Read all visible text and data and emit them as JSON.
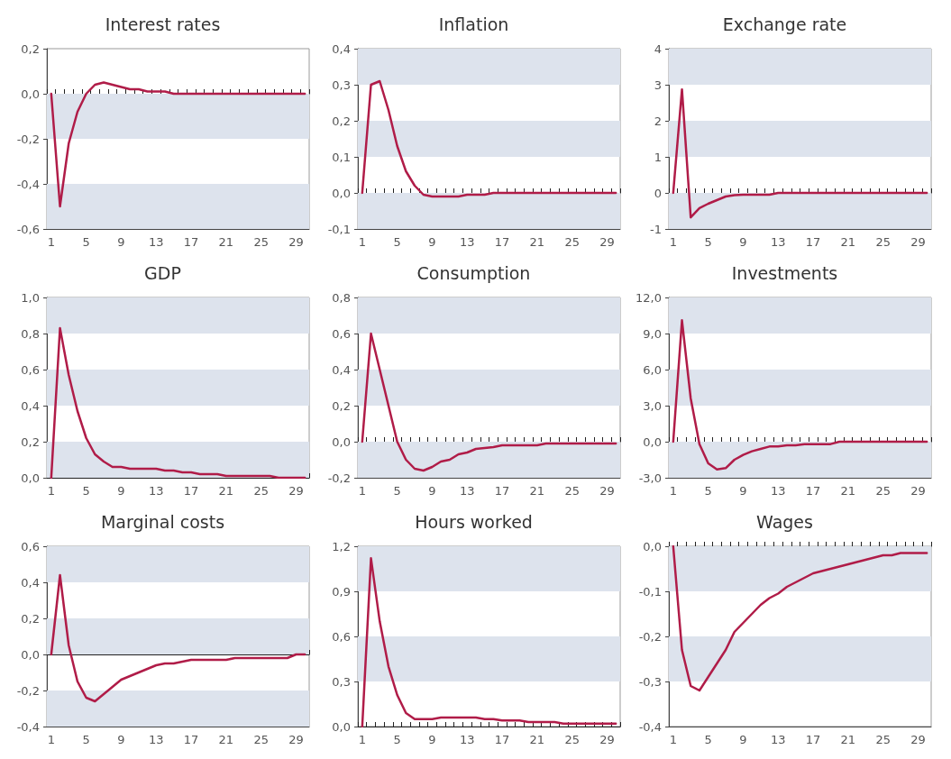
{
  "chart_data": [
    {
      "type": "line",
      "title": "Interest rates",
      "categories": [
        "1",
        null,
        null,
        null,
        "5",
        null,
        null,
        null,
        "9",
        null,
        null,
        null,
        "13",
        null,
        null,
        null,
        "17",
        null,
        null,
        null,
        "21",
        null,
        null,
        null,
        "25",
        null,
        null,
        null,
        "29",
        null
      ],
      "series": [
        {
          "color": "#b01c48",
          "values": [
            0,
            -0.5,
            -0.22,
            -0.08,
            0,
            0.04,
            0.05,
            0.04,
            0.03,
            0.02,
            0.02,
            0.01,
            0.01,
            0.01,
            0,
            0,
            0,
            0,
            0,
            0,
            0,
            0,
            0,
            0,
            0,
            0,
            0,
            0,
            0,
            0
          ]
        }
      ],
      "ylim": [
        -0.6,
        0.2
      ],
      "yticks": [
        {
          "value": -0.6,
          "label": "-0,6"
        },
        {
          "value": -0.4,
          "label": "-0,4"
        },
        {
          "value": -0.2,
          "label": "-0,2"
        },
        {
          "value": 0,
          "label": "0,0"
        },
        {
          "value": 0.2,
          "label": "0,2"
        }
      ],
      "bands": [
        {
          "axis": "y",
          "from": -0.6,
          "to": -0.4,
          "color": "#dde3ed"
        },
        {
          "axis": "y",
          "from": -0.2,
          "to": 0,
          "color": "#dde3ed"
        }
      ],
      "marker": "none",
      "line_style": "solid"
    },
    {
      "type": "line",
      "title": "Inflation",
      "categories": [
        "1",
        null,
        null,
        null,
        "5",
        null,
        null,
        null,
        "9",
        null,
        null,
        null,
        "13",
        null,
        null,
        null,
        "17",
        null,
        null,
        null,
        "21",
        null,
        null,
        null,
        "25",
        null,
        null,
        null,
        "29",
        null
      ],
      "series": [
        {
          "color": "#b01c48",
          "values": [
            0,
            0.3,
            0.31,
            0.23,
            0.13,
            0.06,
            0.02,
            -0.005,
            -0.01,
            -0.01,
            -0.01,
            -0.01,
            -0.005,
            -0.005,
            -0.005,
            0,
            0,
            0,
            0,
            0,
            0,
            0,
            0,
            0,
            0,
            0,
            0,
            0,
            0,
            0
          ]
        }
      ],
      "ylim": [
        -0.1,
        0.4
      ],
      "yticks": [
        {
          "value": -0.1,
          "label": "-0,1"
        },
        {
          "value": 0,
          "label": "0,0"
        },
        {
          "value": 0.1,
          "label": "0,1"
        },
        {
          "value": 0.2,
          "label": "0,2"
        },
        {
          "value": 0.3,
          "label": "0,3"
        },
        {
          "value": 0.4,
          "label": "0,4"
        }
      ],
      "bands": [
        {
          "axis": "y",
          "from": -0.1,
          "to": 0,
          "color": "#dde3ed"
        },
        {
          "axis": "y",
          "from": 0.1,
          "to": 0.2,
          "color": "#dde3ed"
        },
        {
          "axis": "y",
          "from": 0.3,
          "to": 0.4,
          "color": "#dde3ed"
        }
      ],
      "marker": "none",
      "line_style": "solid"
    },
    {
      "type": "line",
      "title": "Exchange rate",
      "categories": [
        "1",
        null,
        null,
        null,
        "5",
        null,
        null,
        null,
        "9",
        null,
        null,
        null,
        "13",
        null,
        null,
        null,
        "17",
        null,
        null,
        null,
        "21",
        null,
        null,
        null,
        "25",
        null,
        null,
        null,
        "29",
        null
      ],
      "series": [
        {
          "color": "#b01c48",
          "values": [
            0,
            2.87,
            -0.68,
            -0.42,
            -0.3,
            -0.2,
            -0.1,
            -0.06,
            -0.05,
            -0.05,
            -0.05,
            -0.05,
            0,
            0,
            0,
            0,
            0,
            0,
            0,
            0,
            0,
            0,
            0,
            0,
            0,
            0,
            0,
            0,
            0,
            0
          ]
        }
      ],
      "ylim": [
        -1,
        4
      ],
      "yticks": [
        -1,
        0,
        1,
        2,
        3,
        4
      ],
      "bands": [
        {
          "axis": "y",
          "from": -1,
          "to": 0,
          "color": "#dde3ed"
        },
        {
          "axis": "y",
          "from": 1,
          "to": 2,
          "color": "#dde3ed"
        },
        {
          "axis": "y",
          "from": 3,
          "to": 4,
          "color": "#dde3ed"
        }
      ],
      "marker": "none",
      "line_style": "solid"
    },
    {
      "type": "line",
      "title": "GDP",
      "categories": [
        "1",
        null,
        null,
        null,
        "5",
        null,
        null,
        null,
        "9",
        null,
        null,
        null,
        "13",
        null,
        null,
        null,
        "17",
        null,
        null,
        null,
        "21",
        null,
        null,
        null,
        "25",
        null,
        null,
        null,
        "29",
        null
      ],
      "series": [
        {
          "color": "#b01c48",
          "values": [
            0,
            0.83,
            0.57,
            0.37,
            0.22,
            0.13,
            0.09,
            0.06,
            0.06,
            0.05,
            0.05,
            0.05,
            0.05,
            0.04,
            0.04,
            0.03,
            0.03,
            0.02,
            0.02,
            0.02,
            0.01,
            0.01,
            0.01,
            0.01,
            0.01,
            0.01,
            0,
            0,
            0,
            0
          ]
        }
      ],
      "ylim": [
        0,
        1
      ],
      "yticks": [
        {
          "value": 0,
          "label": "0,0"
        },
        {
          "value": 0.2,
          "label": "0,2"
        },
        {
          "value": 0.4,
          "label": "0,4"
        },
        {
          "value": 0.6,
          "label": "0,6"
        },
        {
          "value": 0.8,
          "label": "0,8"
        },
        {
          "value": 1,
          "label": "1,0"
        }
      ],
      "bands": [
        {
          "axis": "y",
          "from": 0,
          "to": 0.2,
          "color": "#dde3ed"
        },
        {
          "axis": "y",
          "from": 0.4,
          "to": 0.6,
          "color": "#dde3ed"
        },
        {
          "axis": "y",
          "from": 0.8,
          "to": 1,
          "color": "#dde3ed"
        }
      ],
      "marker": "none",
      "line_style": "solid"
    },
    {
      "type": "line",
      "title": "Consumption",
      "categories": [
        "1",
        null,
        null,
        null,
        "5",
        null,
        null,
        null,
        "9",
        null,
        null,
        null,
        "13",
        null,
        null,
        null,
        "17",
        null,
        null,
        null,
        "21",
        null,
        null,
        null,
        "25",
        null,
        null,
        null,
        "29",
        null
      ],
      "series": [
        {
          "color": "#b01c48",
          "values": [
            0,
            0.6,
            0.4,
            0.2,
            0,
            -0.1,
            -0.15,
            -0.16,
            -0.14,
            -0.11,
            -0.1,
            -0.07,
            -0.06,
            -0.04,
            -0.035,
            -0.03,
            -0.02,
            -0.02,
            -0.02,
            -0.02,
            -0.02,
            -0.01,
            -0.01,
            -0.01,
            -0.01,
            -0.01,
            -0.01,
            -0.01,
            -0.01,
            -0.01
          ]
        }
      ],
      "ylim": [
        -0.2,
        0.8
      ],
      "yticks": [
        {
          "value": -0.2,
          "label": "-0,2"
        },
        {
          "value": 0,
          "label": "0,0"
        },
        {
          "value": 0.2,
          "label": "0,2"
        },
        {
          "value": 0.4,
          "label": "0,4"
        },
        {
          "value": 0.6,
          "label": "0,6"
        },
        {
          "value": 0.8,
          "label": "0,8"
        }
      ],
      "bands": [
        {
          "axis": "y",
          "from": -0.2,
          "to": 0,
          "color": "#dde3ed"
        },
        {
          "axis": "y",
          "from": 0.2,
          "to": 0.4,
          "color": "#dde3ed"
        },
        {
          "axis": "y",
          "from": 0.6,
          "to": 0.8,
          "color": "#dde3ed"
        }
      ],
      "marker": "none",
      "line_style": "solid"
    },
    {
      "type": "line",
      "title": "Investments",
      "categories": [
        "1",
        null,
        null,
        null,
        "5",
        null,
        null,
        null,
        "9",
        null,
        null,
        null,
        "13",
        null,
        null,
        null,
        "17",
        null,
        null,
        null,
        "21",
        null,
        null,
        null,
        "25",
        null,
        null,
        null,
        "29",
        null
      ],
      "series": [
        {
          "color": "#b01c48",
          "values": [
            0,
            10.1,
            3.6,
            -0.2,
            -1.8,
            -2.3,
            -2.2,
            -1.5,
            -1.1,
            -0.8,
            -0.6,
            -0.4,
            -0.4,
            -0.3,
            -0.3,
            -0.2,
            -0.2,
            -0.2,
            -0.2,
            0,
            0,
            0,
            0,
            0,
            0,
            0,
            0,
            0,
            0,
            0
          ]
        }
      ],
      "ylim": [
        -3,
        12
      ],
      "yticks": [
        {
          "value": -3,
          "label": "-3,0"
        },
        {
          "value": 0,
          "label": "0,0"
        },
        {
          "value": 3,
          "label": "3,0"
        },
        {
          "value": 6,
          "label": "6,0"
        },
        {
          "value": 9,
          "label": "9,0"
        },
        {
          "value": 12,
          "label": "12,0"
        }
      ],
      "bands": [
        {
          "axis": "y",
          "from": -3,
          "to": 0,
          "color": "#dde3ed"
        },
        {
          "axis": "y",
          "from": 3,
          "to": 6,
          "color": "#dde3ed"
        },
        {
          "axis": "y",
          "from": 9,
          "to": 12,
          "color": "#dde3ed"
        }
      ],
      "marker": "none",
      "line_style": "solid"
    },
    {
      "type": "line",
      "title": "Marginal costs",
      "categories": [
        "1",
        null,
        null,
        null,
        "5",
        null,
        null,
        null,
        "9",
        null,
        null,
        null,
        "13",
        null,
        null,
        null,
        "17",
        null,
        null,
        null,
        "21",
        null,
        null,
        null,
        "25",
        null,
        null,
        null,
        "29",
        null
      ],
      "series": [
        {
          "color": "#b01c48",
          "values": [
            0,
            0.44,
            0.05,
            -0.15,
            -0.24,
            -0.26,
            -0.22,
            -0.18,
            -0.14,
            -0.12,
            -0.1,
            -0.08,
            -0.06,
            -0.05,
            -0.05,
            -0.04,
            -0.03,
            -0.03,
            -0.03,
            -0.03,
            -0.03,
            -0.02,
            -0.02,
            -0.02,
            -0.02,
            -0.02,
            -0.02,
            -0.02,
            0,
            0
          ]
        }
      ],
      "ylim": [
        -0.4,
        0.6
      ],
      "yticks": [
        {
          "value": -0.4,
          "label": "-0,4"
        },
        {
          "value": -0.2,
          "label": "-0,2"
        },
        {
          "value": 0,
          "label": "0,0"
        },
        {
          "value": 0.2,
          "label": "0,2"
        },
        {
          "value": 0.4,
          "label": "0,4"
        },
        {
          "value": 0.6,
          "label": "0,6"
        }
      ],
      "bands": [
        {
          "axis": "y",
          "from": -0.4,
          "to": -0.2,
          "color": "#dde3ed"
        },
        {
          "axis": "y",
          "from": 0,
          "to": 0.2,
          "color": "#dde3ed"
        },
        {
          "axis": "y",
          "from": 0.4,
          "to": 0.6,
          "color": "#dde3ed"
        }
      ],
      "marker": "none",
      "line_style": "solid"
    },
    {
      "type": "line",
      "title": "Hours worked",
      "categories": [
        "1",
        null,
        null,
        null,
        "5",
        null,
        null,
        null,
        "9",
        null,
        null,
        null,
        "13",
        null,
        null,
        null,
        "17",
        null,
        null,
        null,
        "21",
        null,
        null,
        null,
        "25",
        null,
        null,
        null,
        "29",
        null
      ],
      "series": [
        {
          "color": "#b01c48",
          "values": [
            0,
            1.12,
            0.7,
            0.4,
            0.21,
            0.09,
            0.05,
            0.05,
            0.05,
            0.06,
            0.06,
            0.06,
            0.06,
            0.06,
            0.05,
            0.05,
            0.04,
            0.04,
            0.04,
            0.03,
            0.03,
            0.03,
            0.03,
            0.02,
            0.02,
            0.02,
            0.02,
            0.02,
            0.02,
            0.02
          ]
        }
      ],
      "ylim": [
        0,
        1.2
      ],
      "yticks": [
        {
          "value": 0,
          "label": "0,0"
        },
        {
          "value": 0.3,
          "label": "0,3"
        },
        {
          "value": 0.6,
          "label": "0,6"
        },
        {
          "value": 0.9,
          "label": "0,9"
        },
        {
          "value": 1.2,
          "label": "1,2"
        }
      ],
      "bands": [
        {
          "axis": "y",
          "from": 0.3,
          "to": 0.6,
          "color": "#dde3ed"
        },
        {
          "axis": "y",
          "from": 0.9,
          "to": 1.2,
          "color": "#dde3ed"
        }
      ],
      "marker": "none",
      "line_style": "solid"
    },
    {
      "type": "line",
      "title": "Wages",
      "categories": [
        "1",
        null,
        null,
        null,
        "5",
        null,
        null,
        null,
        "9",
        null,
        null,
        null,
        "13",
        null,
        null,
        null,
        "17",
        null,
        null,
        null,
        "21",
        null,
        null,
        null,
        "25",
        null,
        null,
        null,
        "29",
        null
      ],
      "series": [
        {
          "color": "#b01c48",
          "values": [
            0,
            -0.23,
            -0.31,
            -0.32,
            -0.29,
            -0.26,
            -0.23,
            -0.19,
            -0.17,
            -0.15,
            -0.13,
            -0.115,
            -0.105,
            -0.09,
            -0.08,
            -0.07,
            -0.06,
            -0.055,
            -0.05,
            -0.045,
            -0.04,
            -0.035,
            -0.03,
            -0.025,
            -0.02,
            -0.02,
            -0.015,
            -0.015,
            -0.015,
            -0.015
          ]
        }
      ],
      "ylim": [
        -0.4,
        0
      ],
      "yticks": [
        {
          "value": -0.4,
          "label": "-0,4"
        },
        {
          "value": -0.3,
          "label": "-0,3"
        },
        {
          "value": -0.2,
          "label": "-0,2"
        },
        {
          "value": -0.1,
          "label": "-0,1"
        },
        {
          "value": 0,
          "label": "0,0"
        }
      ],
      "bands": [
        {
          "axis": "y",
          "from": -0.3,
          "to": -0.2,
          "color": "#dde3ed"
        },
        {
          "axis": "y",
          "from": -0.1,
          "to": 0,
          "color": "#dde3ed"
        }
      ],
      "marker": "none",
      "line_style": "solid"
    }
  ]
}
